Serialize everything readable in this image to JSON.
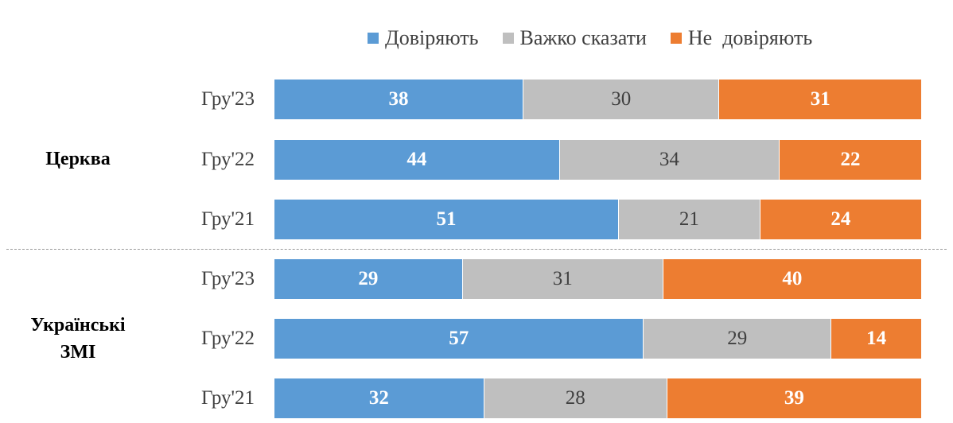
{
  "chart_data": {
    "type": "bar",
    "orientation": "horizontal",
    "stacked": true,
    "title": "",
    "legend_position": "top",
    "series": [
      {
        "name": "Довіряють",
        "color": "#5b9bd5",
        "label_style": "light"
      },
      {
        "name": "Важко сказати",
        "color": "#bfbfbf",
        "label_style": "dark"
      },
      {
        "name": "Не  довіряють",
        "color": "#ed7d31",
        "label_style": "light"
      }
    ],
    "groups": [
      {
        "name": "Церква",
        "rows": [
          {
            "label": "Гру'23",
            "values": [
              38,
              30,
              31
            ]
          },
          {
            "label": "Гру'22",
            "values": [
              44,
              34,
              22
            ]
          },
          {
            "label": "Гру'21",
            "values": [
              51,
              21,
              24
            ]
          }
        ]
      },
      {
        "name": "Українські\nЗМІ",
        "rows": [
          {
            "label": "Гру'23",
            "values": [
              29,
              31,
              40
            ]
          },
          {
            "label": "Гру'22",
            "values": [
              57,
              29,
              14
            ]
          },
          {
            "label": "Гру'21",
            "values": [
              32,
              28,
              39
            ]
          }
        ]
      }
    ]
  }
}
